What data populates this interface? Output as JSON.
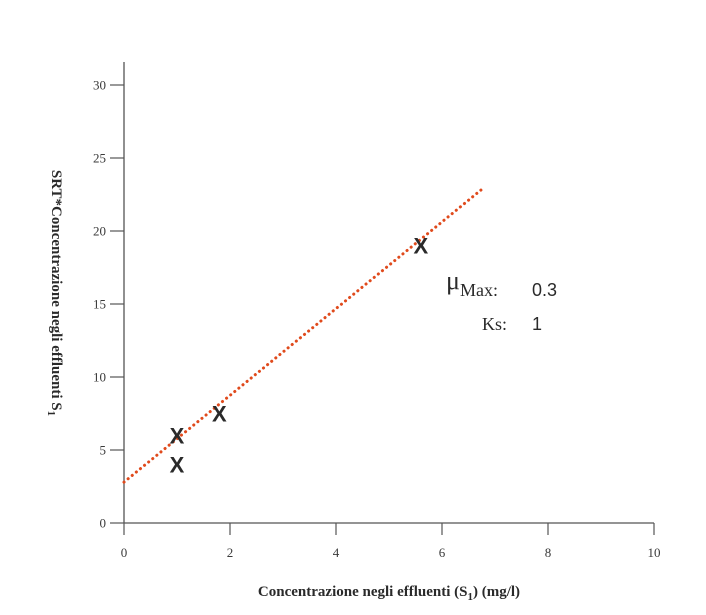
{
  "chart_data": {
    "type": "scatter",
    "title": "",
    "xlabel_parts": [
      "Concentrazione negli effluenti (S",
      "1",
      ") (mg/l)"
    ],
    "ylabel_parts": [
      "SRT*Concentrazione negli effluenti S",
      "1"
    ],
    "xlim": [
      0,
      10
    ],
    "ylim": [
      0,
      30
    ],
    "x_ticks": [
      0,
      2,
      4,
      6,
      8,
      10
    ],
    "y_ticks": [
      0,
      5,
      10,
      15,
      20,
      25,
      30
    ],
    "marker_glyph": "X",
    "points": [
      {
        "x": 1.0,
        "y": 4.0
      },
      {
        "x": 1.0,
        "y": 6.0
      },
      {
        "x": 1.8,
        "y": 7.5
      },
      {
        "x": 5.6,
        "y": 19.0
      }
    ],
    "fit_line": {
      "x": [
        0,
        6.8
      ],
      "y": [
        2.8,
        23.0
      ],
      "color": "#e04a1c",
      "style": "dotted"
    },
    "annotation": {
      "mu_symbol": "μ",
      "mu_subscript": "Max",
      "mu_separator": ":",
      "mu_value": "0.3",
      "ks_label": "Ks",
      "ks_separator": ":",
      "ks_value": "1"
    },
    "grid": false
  }
}
